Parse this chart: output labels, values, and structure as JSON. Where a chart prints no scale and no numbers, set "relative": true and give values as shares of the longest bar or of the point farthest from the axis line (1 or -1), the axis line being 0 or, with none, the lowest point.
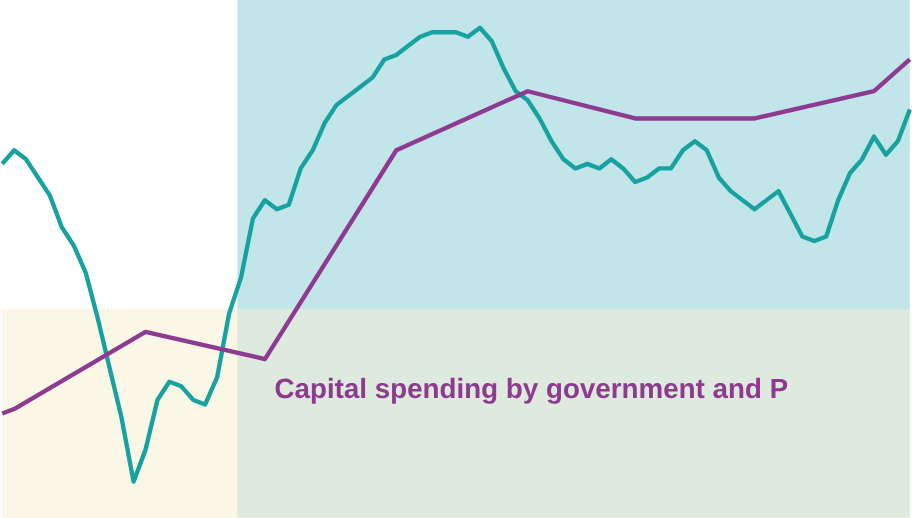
{
  "chart_data": {
    "type": "line",
    "relative": true,
    "line_style": "solid",
    "marker": "none",
    "categories": [
      null,
      null,
      null,
      null,
      null,
      null,
      null,
      null,
      null,
      null,
      null,
      null,
      null,
      null,
      null,
      null,
      null,
      null,
      null,
      null,
      null,
      null,
      null,
      null,
      null,
      null,
      null,
      null,
      null,
      null,
      null,
      null,
      null,
      null,
      null,
      null,
      null,
      null,
      null,
      null,
      null,
      null,
      null,
      null,
      null,
      null,
      null,
      null,
      null,
      null,
      null,
      null,
      null,
      null,
      null,
      null,
      null,
      null,
      null,
      null,
      null,
      null,
      null,
      null,
      null,
      null,
      null,
      null,
      null,
      null,
      null,
      null,
      null,
      null,
      null,
      null,
      null
    ],
    "series": [
      {
        "color": "#17a2a0",
        "values": [
          0.7,
          0.73,
          0.71,
          0.67,
          0.63,
          0.56,
          0.52,
          0.46,
          0.36,
          0.25,
          0.14,
          0,
          0.07,
          0.18,
          0.22,
          0.21,
          0.18,
          0.17,
          0.23,
          0.37,
          0.45,
          0.58,
          0.62,
          0.6,
          0.61,
          0.69,
          0.73,
          0.79,
          0.83,
          0.85,
          0.87,
          0.89,
          0.93,
          0.94,
          0.96,
          0.98,
          0.99,
          0.99,
          0.99,
          0.98,
          1.0,
          0.97,
          0.91,
          0.86,
          0.84,
          0.8,
          0.75,
          0.71,
          0.69,
          0.7,
          0.69,
          0.71,
          0.69,
          0.66,
          0.67,
          0.69,
          0.69,
          0.73,
          0.75,
          0.73,
          0.67,
          0.64,
          0.62,
          0.6,
          0.62,
          0.64,
          0.59,
          0.54,
          0.53,
          0.54,
          0.62,
          0.68,
          0.71,
          0.76,
          0.72,
          0.75,
          0.82
        ]
      },
      {
        "name": "Capital spending by government and P",
        "color": "#8e3a91",
        "values": [
          0.15,
          0.16,
          null,
          null,
          null,
          null,
          null,
          null,
          null,
          null,
          null,
          null,
          0.33,
          null,
          null,
          null,
          null,
          null,
          null,
          null,
          null,
          null,
          0.27,
          null,
          null,
          null,
          null,
          null,
          null,
          null,
          null,
          null,
          null,
          0.73,
          null,
          null,
          null,
          null,
          null,
          null,
          null,
          null,
          null,
          null,
          0.86,
          null,
          null,
          null,
          null,
          null,
          null,
          null,
          null,
          0.8,
          null,
          null,
          null,
          null,
          null,
          null,
          null,
          null,
          null,
          0.8,
          null,
          null,
          null,
          null,
          null,
          null,
          null,
          null,
          null,
          0.86,
          null,
          null,
          0.93
        ]
      }
    ],
    "bands": [
      {
        "axis": "y",
        "from": -0.08,
        "to": 0.38,
        "color": "#f8f0d0"
      }
    ]
  }
}
